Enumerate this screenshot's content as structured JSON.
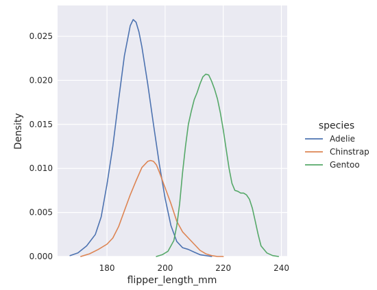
{
  "chart_data": {
    "type": "line",
    "xlabel": "flipper_length_mm",
    "ylabel": "Density",
    "xlim": [
      163,
      242
    ],
    "ylim": [
      0,
      0.0285
    ],
    "x_ticks": [
      180,
      200,
      220,
      240
    ],
    "x_tick_labels": [
      "180",
      "200",
      "220",
      "240"
    ],
    "y_ticks": [
      0.0,
      0.005,
      0.01,
      0.015,
      0.02,
      0.025
    ],
    "y_tick_labels": [
      "0.000",
      "0.005",
      "0.010",
      "0.015",
      "0.020",
      "0.025"
    ],
    "grid": true,
    "legend": {
      "title": "species",
      "placement": "right"
    },
    "series": [
      {
        "name": "Adelie",
        "color": "#4c72b0",
        "x": [
          167.3,
          170,
          173,
          176,
          178,
          180,
          182,
          184,
          186,
          188,
          189,
          190,
          191,
          192,
          194,
          196,
          198,
          200,
          202,
          204,
          206,
          208,
          210,
          212,
          214,
          216
        ],
        "y": [
          0.0001,
          0.0004,
          0.0012,
          0.0025,
          0.0045,
          0.0082,
          0.0125,
          0.0178,
          0.0228,
          0.0262,
          0.0269,
          0.0266,
          0.0255,
          0.0238,
          0.0196,
          0.015,
          0.0105,
          0.0066,
          0.0035,
          0.0017,
          0.001,
          0.0008,
          0.0005,
          0.0002,
          0.0001,
          0.0
        ]
      },
      {
        "name": "Chinstrap",
        "color": "#dd8452",
        "x": [
          171,
          174,
          177,
          180,
          182,
          184,
          186,
          188,
          190,
          192,
          194,
          195,
          196,
          197,
          198,
          200,
          202,
          204,
          206,
          208,
          210,
          212,
          214,
          216,
          218,
          220
        ],
        "y": [
          0.0,
          0.0003,
          0.0008,
          0.0014,
          0.0021,
          0.0034,
          0.0052,
          0.007,
          0.0086,
          0.0101,
          0.0108,
          0.0109,
          0.0108,
          0.0104,
          0.0096,
          0.0078,
          0.006,
          0.004,
          0.0028,
          0.0021,
          0.0014,
          0.0007,
          0.0003,
          0.0001,
          0.0,
          0.0
        ]
      },
      {
        "name": "Gentoo",
        "color": "#55a868",
        "x": [
          197,
          199,
          201,
          203,
          204,
          205,
          206,
          207,
          208,
          209,
          210,
          211,
          212,
          213,
          214,
          215,
          216,
          217,
          218,
          219,
          220,
          221,
          222,
          223,
          224,
          225,
          226,
          227,
          228,
          229,
          230,
          231,
          232,
          233,
          235,
          237,
          239
        ],
        "y": [
          0.0,
          0.0002,
          0.0006,
          0.0018,
          0.0035,
          0.006,
          0.0095,
          0.0125,
          0.015,
          0.0165,
          0.0178,
          0.0186,
          0.0196,
          0.0204,
          0.0207,
          0.0206,
          0.0199,
          0.019,
          0.0179,
          0.0163,
          0.0144,
          0.0122,
          0.01,
          0.0083,
          0.0075,
          0.0074,
          0.0072,
          0.0072,
          0.007,
          0.0065,
          0.0055,
          0.004,
          0.0025,
          0.0012,
          0.0004,
          0.0001,
          0.0
        ]
      }
    ]
  }
}
